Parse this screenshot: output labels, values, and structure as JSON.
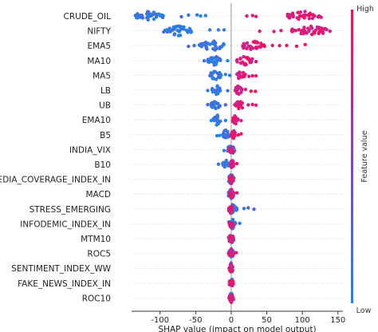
{
  "chart_data": {
    "type": "scatter",
    "subtype": "shap-beeswarm",
    "xlabel": "SHAP value (impact on model output)",
    "xticks": [
      -100,
      -50,
      0,
      50,
      100,
      150
    ],
    "xlim": [
      -140,
      157
    ],
    "zero_line": true,
    "colorbar": {
      "label": "Feature value",
      "high_label": "High",
      "low_label": "Low",
      "low_color": "#1e88e5",
      "high_color": "#ff0d57"
    },
    "features": [
      {
        "name": "CRUDE_OIL",
        "low_cluster": [
          -135,
          -95
        ],
        "low_outliers": [
          -70,
          -60,
          -48,
          -43,
          -36
        ],
        "high_cluster": [
          78,
          128
        ],
        "high_outliers": [
          22,
          30,
          35
        ]
      },
      {
        "name": "NIFTY",
        "low_cluster": [
          -95,
          -55
        ],
        "low_outliers": [
          -30,
          -18,
          -10
        ],
        "high_cluster": [
          85,
          140
        ],
        "high_outliers": [
          40,
          60,
          70
        ]
      },
      {
        "name": "EMA5",
        "low_cluster": [
          -45,
          -10
        ],
        "low_outliers": [
          -60,
          -52
        ],
        "high_cluster": [
          12,
          48
        ],
        "high_outliers": [
          58,
          68,
          78,
          92,
          104
        ]
      },
      {
        "name": "MA10",
        "low_cluster": [
          -33,
          -15
        ],
        "low_outliers": [
          -38,
          -5
        ],
        "high_cluster": [
          8,
          30
        ],
        "high_outliers": [
          35
        ]
      },
      {
        "name": "MA5",
        "low_cluster": [
          -30,
          -14
        ],
        "low_outliers": [
          -8,
          -2
        ],
        "high_cluster": [
          8,
          20
        ],
        "high_outliers": [
          25,
          30,
          35
        ]
      },
      {
        "name": "LB",
        "low_cluster": [
          -28,
          -15
        ],
        "low_outliers": [
          -33,
          -5
        ],
        "high_cluster": [
          5,
          15
        ],
        "high_outliers": [
          20,
          28,
          34
        ]
      },
      {
        "name": "UB",
        "low_cluster": [
          -28,
          -15
        ],
        "low_outliers": [
          -33,
          -8
        ],
        "high_cluster": [
          5,
          18
        ],
        "high_outliers": [
          24,
          30,
          35
        ]
      },
      {
        "name": "EMA10",
        "low_cluster": [
          -25,
          -15
        ],
        "low_outliers": [
          -28,
          -8
        ],
        "high_cluster": [
          2,
          10
        ],
        "high_outliers": [
          14
        ]
      },
      {
        "name": "B5",
        "low_cluster": [
          -12,
          -3
        ],
        "low_outliers": [
          -20,
          -16
        ],
        "high_cluster": [
          0,
          6
        ],
        "high_outliers": [
          10,
          14
        ]
      },
      {
        "name": "INDIA_VIX",
        "low_cluster": [
          -5,
          5
        ],
        "low_outliers": [
          -10
        ],
        "high_cluster": [
          -3,
          3
        ],
        "high_outliers": []
      },
      {
        "name": "B10",
        "low_cluster": [
          -12,
          -3
        ],
        "low_outliers": [
          -18
        ],
        "high_cluster": [
          -1,
          4
        ],
        "high_outliers": [
          8
        ]
      },
      {
        "name": "MEDIA_COVERAGE_INDEX_IN",
        "low_cluster": [
          -4,
          4
        ],
        "low_outliers": [],
        "high_cluster": [
          -3,
          3
        ],
        "high_outliers": []
      },
      {
        "name": "MACD",
        "low_cluster": [
          -4,
          4
        ],
        "low_outliers": [],
        "high_cluster": [
          -2,
          3
        ],
        "high_outliers": [
          8
        ]
      },
      {
        "name": "STRESS_EMERGING",
        "low_cluster": [
          -4,
          8
        ],
        "low_outliers": [
          18,
          24,
          32
        ],
        "high_cluster": [
          -4,
          2
        ],
        "high_outliers": []
      },
      {
        "name": "INFODEMIC_INDEX_IN",
        "low_cluster": [
          -4,
          6
        ],
        "low_outliers": [
          12
        ],
        "high_cluster": [
          -3,
          3
        ],
        "high_outliers": []
      },
      {
        "name": "MTM10",
        "low_cluster": [
          -4,
          4
        ],
        "low_outliers": [],
        "high_cluster": [
          -3,
          3
        ],
        "high_outliers": []
      },
      {
        "name": "ROC5",
        "low_cluster": [
          -4,
          4
        ],
        "low_outliers": [],
        "high_cluster": [
          -3,
          3
        ],
        "high_outliers": [
          7
        ]
      },
      {
        "name": "SENTIMENT_INDEX_WW",
        "low_cluster": [
          -3,
          3
        ],
        "low_outliers": [],
        "high_cluster": [
          -3,
          3
        ],
        "high_outliers": []
      },
      {
        "name": "FAKE_NEWS_INDEX_IN",
        "low_cluster": [
          -3,
          3
        ],
        "low_outliers": [],
        "high_cluster": [
          -3,
          3
        ],
        "high_outliers": []
      },
      {
        "name": "ROC10",
        "low_cluster": [
          -3,
          3
        ],
        "low_outliers": [],
        "high_cluster": [
          -3,
          3
        ],
        "high_outliers": []
      }
    ]
  }
}
